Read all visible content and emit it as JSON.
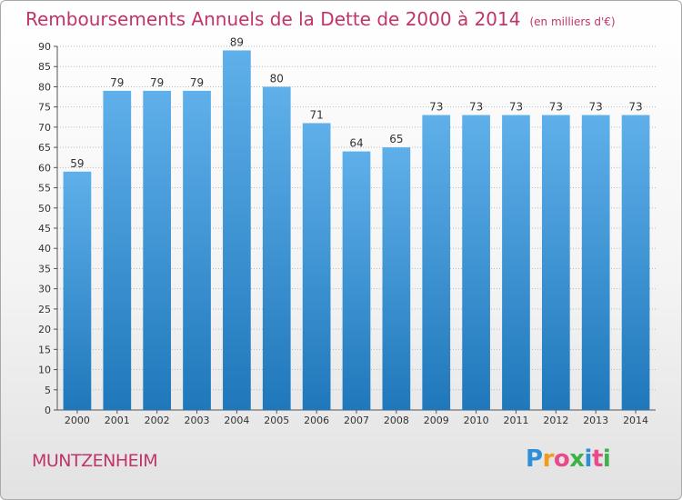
{
  "header": {
    "title": "Remboursements Annuels de la Dette de 2000 à 2014",
    "unit": "(en milliers d'€)"
  },
  "footer": {
    "commune": "MUNTZENHEIM",
    "logo_letters": [
      "P",
      "r",
      "o",
      "x",
      "i",
      "t",
      "i"
    ],
    "logo_colors": [
      "#2e8fd6",
      "#f29a1c",
      "#e84b8a",
      "#3db24b",
      "#2e8fd6",
      "#e84b8a",
      "#3db24b"
    ]
  },
  "colors": {
    "bar_top": "#5fb0ea",
    "bar_bottom": "#1f78bb",
    "grid": "#bbbbbb",
    "axis": "#555555"
  },
  "chart_data": {
    "type": "bar",
    "title": "Remboursements Annuels de la Dette de 2000 à 2014",
    "subtitle": "(en milliers d'€)",
    "xlabel": "",
    "ylabel": "",
    "categories": [
      "2000",
      "2001",
      "2002",
      "2003",
      "2004",
      "2005",
      "2006",
      "2007",
      "2008",
      "2009",
      "2010",
      "2011",
      "2012",
      "2013",
      "2014"
    ],
    "values": [
      59,
      79,
      79,
      79,
      89,
      80,
      71,
      64,
      65,
      73,
      73,
      73,
      73,
      73,
      73
    ],
    "ylim": [
      0,
      90
    ],
    "yticks": [
      0,
      5,
      10,
      15,
      20,
      25,
      30,
      35,
      40,
      45,
      50,
      55,
      60,
      65,
      70,
      75,
      80,
      85,
      90
    ],
    "grid": true
  }
}
